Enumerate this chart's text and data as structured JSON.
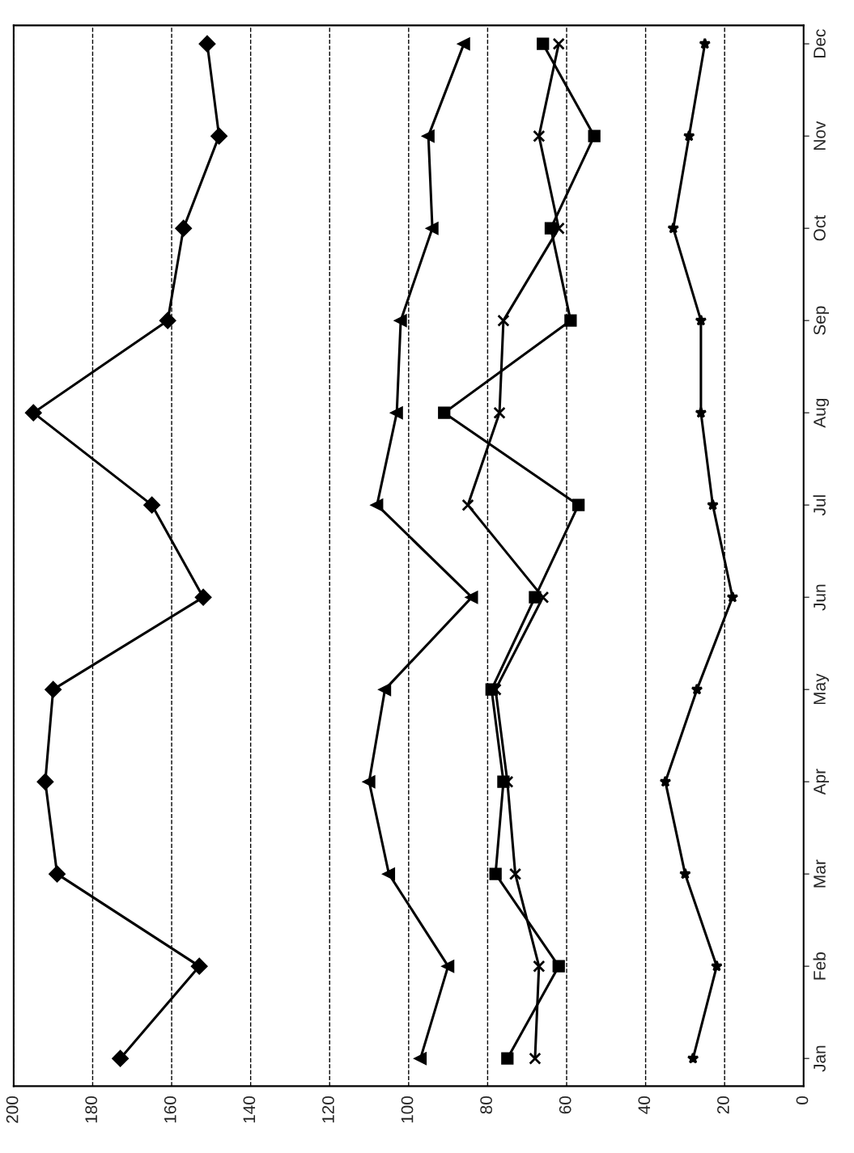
{
  "chart_data": {
    "type": "line",
    "orientation": "horizontal",
    "categories": [
      "Dec",
      "Nov",
      "Oct",
      "Sep",
      "Aug",
      "Jul",
      "Jun",
      "May",
      "Apr",
      "Mar",
      "Feb",
      "Jan"
    ],
    "series": [
      {
        "color": "#000000",
        "marker": "diamond",
        "values": [
          151,
          148,
          157,
          161,
          195,
          165,
          152,
          190,
          192,
          189,
          153,
          173
        ]
      },
      {
        "color": "#000000",
        "marker": "triangle",
        "values": [
          86,
          95,
          94,
          102,
          103,
          108,
          84,
          106,
          110,
          105,
          90,
          97
        ]
      },
      {
        "color": "#000000",
        "marker": "square",
        "values": [
          66,
          53,
          64,
          59,
          91,
          57,
          68,
          79,
          76,
          78,
          62,
          75
        ]
      },
      {
        "color": "#000000",
        "marker": "cross",
        "values": [
          62,
          67,
          62,
          76,
          77,
          85,
          66,
          78,
          75,
          73,
          67,
          68
        ]
      },
      {
        "color": "#000000",
        "marker": "star",
        "values": [
          25,
          29,
          33,
          26,
          26,
          23,
          18,
          27,
          35,
          30,
          22,
          28
        ]
      }
    ],
    "xlim": [
      200,
      0
    ],
    "xticks": [
      0,
      20,
      40,
      60,
      80,
      100,
      120,
      140,
      160,
      180,
      200
    ],
    "grid": "x",
    "line_style": "solid"
  }
}
